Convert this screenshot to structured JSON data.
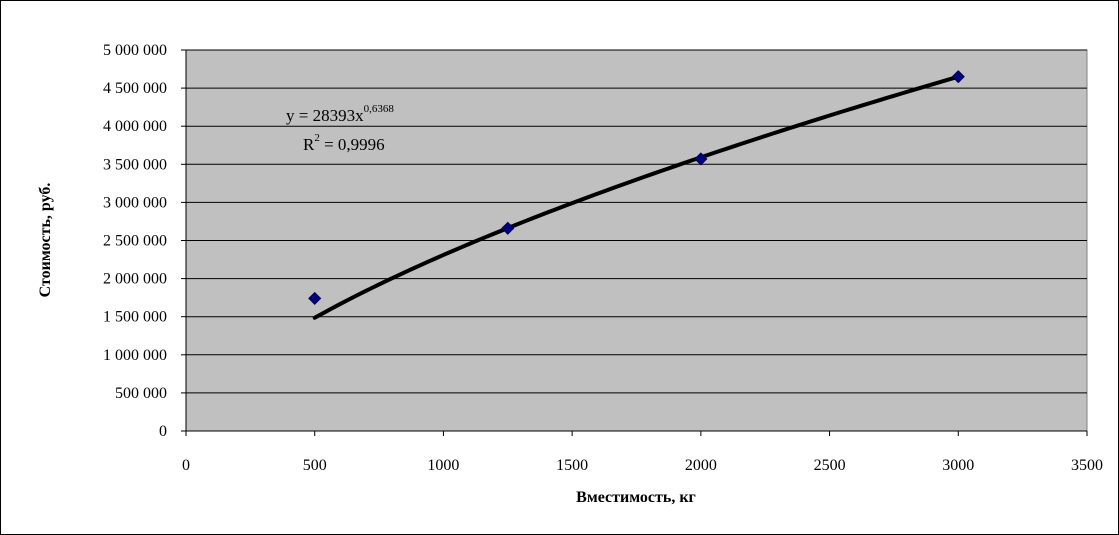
{
  "chart_data": {
    "type": "scatter",
    "xlabel": "Вместимость, кг",
    "ylabel": "Стоимость, руб.",
    "xlim": [
      0,
      3500
    ],
    "ylim": [
      0,
      5000000
    ],
    "x_ticks": [
      0,
      500,
      1000,
      1500,
      2000,
      2500,
      3000,
      3500
    ],
    "x_tick_labels": [
      "0",
      "500",
      "1000",
      "1500",
      "2000",
      "2500",
      "3000",
      "3500"
    ],
    "y_ticks": [
      0,
      500000,
      1000000,
      1500000,
      2000000,
      2500000,
      3000000,
      3500000,
      4000000,
      4500000,
      5000000
    ],
    "y_tick_labels": [
      "0",
      "500 000",
      "1 000 000",
      "1 500 000",
      "2 000 000",
      "2 500 000",
      "3 000 000",
      "3 500 000",
      "4 000 000",
      "4 500 000",
      "5 000 000"
    ],
    "grid": true,
    "plot_background": "#C0C0C0",
    "marker_color": "#000080",
    "trendline_color": "#000000",
    "points": [
      {
        "x": 500,
        "y": 1740000
      },
      {
        "x": 1250,
        "y": 2660000
      },
      {
        "x": 2000,
        "y": 3570000
      },
      {
        "x": 3000,
        "y": 4650000
      }
    ],
    "trendline": {
      "type": "power",
      "a": 28393,
      "b": 0.6368,
      "x_range": [
        500,
        3000
      ],
      "equation_base": "y = 28393x",
      "equation_exponent": "0,6368",
      "r2_base": "R",
      "r2_exponent": "2",
      "r2_value": " = 0,9996"
    }
  }
}
